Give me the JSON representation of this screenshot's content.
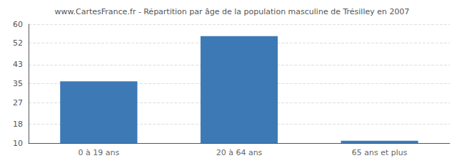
{
  "chart_data": {
    "type": "bar",
    "title": "www.CartesFrance.fr - Répartition par âge de la population masculine de Trésilley en 2007",
    "categories": [
      "0 à 19 ans",
      "20 à 64 ans",
      "65 ans et plus"
    ],
    "values": [
      36,
      55,
      11
    ],
    "color": "#3d7ab5",
    "ylim": [
      10,
      60
    ],
    "yticks": [
      10,
      18,
      27,
      35,
      43,
      52,
      60
    ],
    "grid": true
  }
}
